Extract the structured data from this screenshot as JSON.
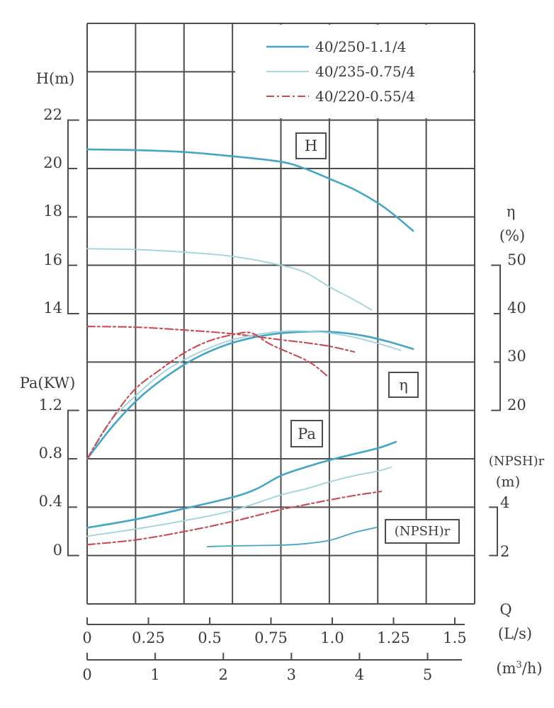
{
  "legend": {
    "items": [
      {
        "label": "40/250-1.1/4",
        "color": "#45a5c5",
        "width": 2.6,
        "dash": ""
      },
      {
        "label": "40/235-0.75/4",
        "color": "#9fd2da",
        "width": 1.8,
        "dash": ""
      },
      {
        "label": "40/220-0.55/4",
        "color": "#c84a52",
        "width": 2.1,
        "dash": "11 4 3 4"
      }
    ]
  },
  "axes": {
    "h": {
      "title": "H(m)",
      "ticks": [
        "22",
        "20",
        "18",
        "16",
        "14"
      ],
      "values": [
        22,
        20,
        18,
        16,
        14
      ]
    },
    "pa": {
      "title": "Pa(KW)",
      "ticks": [
        "1.2",
        "0.8",
        "0.4",
        "0"
      ],
      "values": [
        1.2,
        0.8,
        0.4,
        0
      ]
    },
    "eta": {
      "title": "η",
      "unit": "(%)",
      "ticks": [
        "50",
        "40",
        "30",
        "20"
      ],
      "values": [
        50,
        40,
        30,
        20
      ]
    },
    "npsh": {
      "title": "(NPSH)r",
      "unit": "(m)",
      "ticks": [
        "4",
        "2"
      ],
      "values": [
        4,
        2
      ]
    },
    "q": {
      "title": "Q",
      "ls_unit": "(L/s)",
      "ls_ticks": [
        "0",
        "0.25",
        "0.5",
        "0.75",
        "1.0",
        "1.25",
        "1.5"
      ],
      "ls_values": [
        0,
        0.25,
        0.5,
        0.75,
        1.0,
        1.25,
        1.5
      ],
      "m3h_unit_prefix": "(m",
      "m3h_unit_sup": "3",
      "m3h_unit_suffix": "/h)",
      "m3h_ticks": [
        "0",
        "1",
        "2",
        "3",
        "4",
        "5"
      ],
      "m3h_values": [
        0,
        1,
        2,
        3,
        4,
        5
      ]
    }
  },
  "curve_labels": {
    "h": "H",
    "eta": "η",
    "pa": "Pa",
    "npsh": "(NPSH)r"
  },
  "chart_data": {
    "type": "line",
    "x_axis": {
      "label": "Q",
      "units": [
        "L/s",
        "m3/h"
      ],
      "range_ls": [
        0,
        1.5
      ]
    },
    "y_axes": {
      "H": {
        "label": "H(m)",
        "range": [
          12,
          24
        ]
      },
      "eta": {
        "label": "η(%)",
        "range": [
          10,
          60
        ]
      },
      "Pa": {
        "label": "Pa(KW)",
        "range": [
          0,
          1.6
        ]
      },
      "npsh": {
        "label": "(NPSH)r(m)",
        "range": [
          0,
          6
        ]
      }
    },
    "grid": {
      "rows": 12,
      "cols": 8
    },
    "series": [
      {
        "name": "H 40/250-1.1/4",
        "model": "40/250-1.1/4",
        "axis": "H",
        "style": 0,
        "Q": [
          0,
          0.2,
          0.4,
          0.6,
          0.79,
          0.89,
          0.99,
          1.09,
          1.19,
          1.26,
          1.33
        ],
        "v": [
          20.79,
          20.76,
          20.68,
          20.5,
          20.28,
          19.99,
          19.57,
          19.13,
          18.55,
          18.02,
          17.42
        ]
      },
      {
        "name": "H 40/235-0.75/4",
        "model": "40/235-0.75/4",
        "axis": "H",
        "style": 1,
        "Q": [
          0,
          0.2,
          0.4,
          0.6,
          0.79,
          0.89,
          0.99,
          1.08,
          1.16
        ],
        "v": [
          16.68,
          16.65,
          16.54,
          16.36,
          16.0,
          15.7,
          15.1,
          14.62,
          14.16
        ]
      },
      {
        "name": "H 40/220-0.55/4",
        "model": "40/220-0.55/4",
        "axis": "H",
        "style": 2,
        "Q": [
          0,
          0.2,
          0.4,
          0.59,
          0.79,
          0.89,
          0.99,
          1.09
        ],
        "v": [
          13.47,
          13.44,
          13.32,
          13.17,
          12.92,
          12.8,
          12.65,
          12.42
        ]
      },
      {
        "name": "η 40/250-1.1/4",
        "model": "40/250-1.1/4",
        "axis": "eta",
        "style": 0,
        "Q": [
          0,
          0.11,
          0.22,
          0.34,
          0.45,
          0.57,
          0.69,
          0.8,
          0.92,
          1.03,
          1.13,
          1.23,
          1.33
        ],
        "v": [
          10.0,
          17.1,
          22.9,
          27.6,
          31.0,
          33.6,
          35.2,
          36.0,
          36.3,
          36.1,
          35.4,
          34.2,
          32.7
        ]
      },
      {
        "name": "η 40/235-0.75/4",
        "model": "40/235-0.75/4",
        "axis": "eta",
        "style": 1,
        "Q": [
          0,
          0.09,
          0.21,
          0.32,
          0.44,
          0.56,
          0.67,
          0.79,
          0.89,
          0.99,
          1.09,
          1.19,
          1.28
        ],
        "v": [
          10.0,
          17.5,
          23.6,
          28.2,
          31.6,
          34.1,
          35.5,
          36.3,
          36.4,
          36.0,
          35.1,
          33.8,
          32.4
        ]
      },
      {
        "name": "η 40/220-0.55/4",
        "model": "40/220-0.55/4",
        "axis": "eta",
        "style": 2,
        "Q": [
          0,
          0.09,
          0.19,
          0.3,
          0.4,
          0.5,
          0.6,
          0.67,
          0.75,
          0.88,
          0.93,
          0.98
        ],
        "v": [
          10.0,
          17.4,
          24.1,
          28.5,
          32.0,
          34.4,
          35.7,
          36.0,
          33.6,
          30.7,
          29.2,
          27.1
        ]
      },
      {
        "name": "Pa 40/250-1.1/4",
        "model": "40/250-1.1/4",
        "axis": "Pa",
        "style": 0,
        "Q": [
          0,
          0.2,
          0.4,
          0.59,
          0.69,
          0.79,
          0.89,
          0.99,
          1.09,
          1.19,
          1.26
        ],
        "v": [
          0.23,
          0.3,
          0.39,
          0.48,
          0.55,
          0.66,
          0.73,
          0.79,
          0.84,
          0.89,
          0.94
        ]
      },
      {
        "name": "Pa 40/235-0.75/4",
        "model": "40/235-0.75/4",
        "axis": "Pa",
        "style": 1,
        "Q": [
          0,
          0.2,
          0.4,
          0.59,
          0.79,
          0.89,
          0.99,
          1.09,
          1.19,
          1.24
        ],
        "v": [
          0.16,
          0.22,
          0.29,
          0.37,
          0.5,
          0.55,
          0.61,
          0.66,
          0.7,
          0.73
        ]
      },
      {
        "name": "Pa 40/220-0.55/4",
        "model": "40/220-0.55/4",
        "axis": "Pa",
        "style": 2,
        "Q": [
          0,
          0.2,
          0.4,
          0.59,
          0.79,
          0.89,
          0.99,
          1.1,
          1.2
        ],
        "v": [
          0.09,
          0.13,
          0.2,
          0.28,
          0.38,
          0.42,
          0.46,
          0.5,
          0.53
        ]
      },
      {
        "name": "(NPSH)r",
        "model": "",
        "axis": "npsh",
        "style": 3,
        "Q": [
          0.49,
          0.6,
          0.79,
          0.89,
          0.99,
          1.09,
          1.18
        ],
        "v": [
          2.37,
          2.4,
          2.43,
          2.49,
          2.63,
          2.95,
          3.16
        ]
      }
    ]
  }
}
